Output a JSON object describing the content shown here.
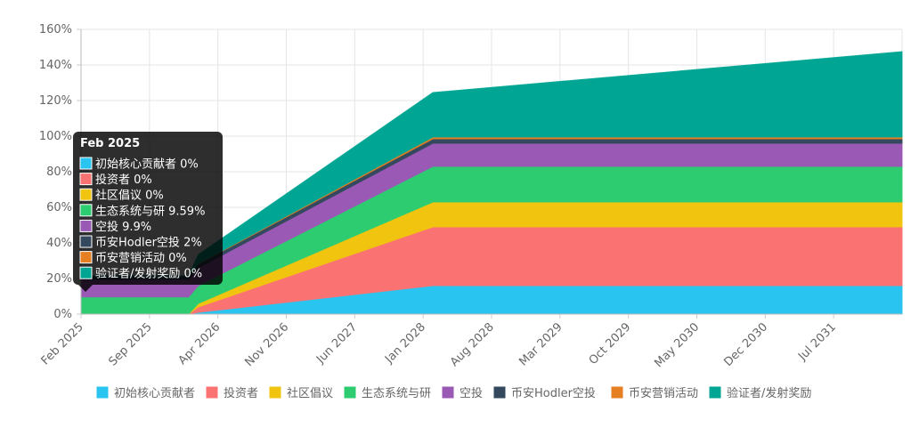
{
  "chart_data": {
    "type": "area",
    "stacked": true,
    "title": "",
    "xlabel": "",
    "ylabel": "",
    "ylim": [
      0,
      160
    ],
    "y_ticks": [
      "0%",
      "20%",
      "40%",
      "60%",
      "80%",
      "100%",
      "120%",
      "140%",
      "160%"
    ],
    "x_tick_labels": [
      "Feb 2025",
      "Sep 2025",
      "Apr 2026",
      "Nov 2026",
      "Jun 2027",
      "Jan 2028",
      "Aug 2028",
      "Mar 2029",
      "Oct 2029",
      "May 2030",
      "Dec 2030",
      "Jul 2031"
    ],
    "x": [
      "2025-02",
      "2026-01",
      "2026-02",
      "2028-02",
      "2032-02"
    ],
    "grid": true,
    "legend_position": "bottom",
    "series": [
      {
        "name": "初始核心贡献者",
        "color": "#29c4f0",
        "values": [
          0,
          0,
          1,
          16,
          16
        ]
      },
      {
        "name": "投资者",
        "color": "#fb7272",
        "values": [
          0,
          0,
          3,
          33,
          33
        ]
      },
      {
        "name": "社区倡议",
        "color": "#f1c40f",
        "values": [
          0,
          0,
          2,
          14,
          14
        ]
      },
      {
        "name": "生态系统与研",
        "color": "#2ecc71",
        "values": [
          9.59,
          9.59,
          10,
          20,
          20
        ]
      },
      {
        "name": "空投",
        "color": "#9b59b6",
        "values": [
          9.9,
          9.9,
          10,
          13,
          13
        ]
      },
      {
        "name": "币安Hodler空投",
        "color": "#34495e",
        "values": [
          2,
          2,
          2.2,
          2.5,
          2.5
        ]
      },
      {
        "name": "币安营销活动",
        "color": "#e67e22",
        "values": [
          0,
          0,
          0.2,
          1,
          1
        ]
      },
      {
        "name": "验证者/发射奖励",
        "color": "#00a693",
        "values": [
          0,
          0,
          5,
          25,
          48
        ]
      }
    ],
    "tooltip": {
      "title": "Feb 2025",
      "items": [
        {
          "label": "初始核心贡献者 0%"
        },
        {
          "label": "投资者 0%"
        },
        {
          "label": "社区倡议 0%"
        },
        {
          "label": "生态系统与研 9.59%"
        },
        {
          "label": "空投 9.9%"
        },
        {
          "label": "币安Hodler空投 2%"
        },
        {
          "label": "币安营销活动 0%"
        },
        {
          "label": "验证者/发射奖励 0%"
        }
      ]
    }
  }
}
